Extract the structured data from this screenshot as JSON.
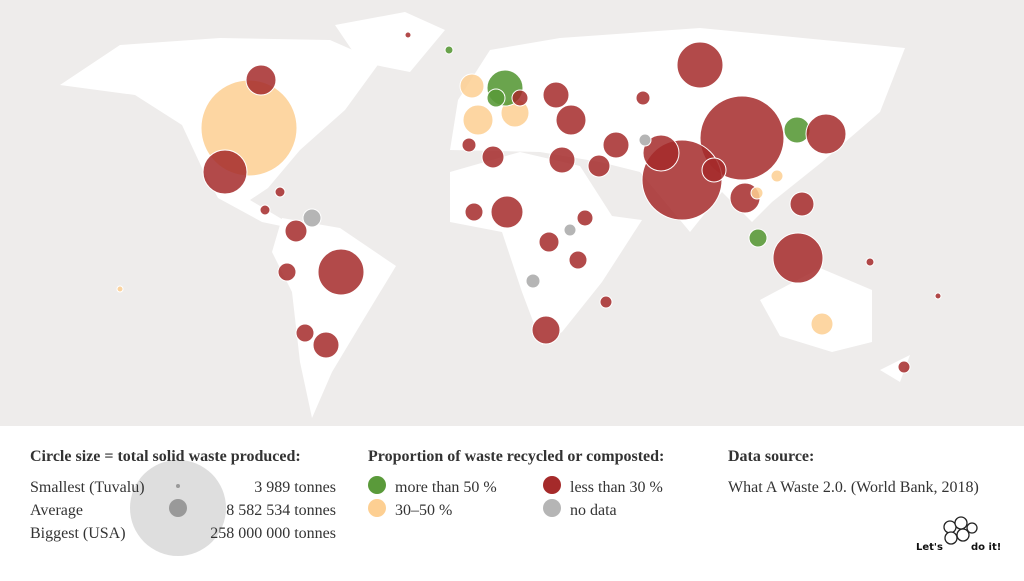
{
  "size_legend": {
    "title": "Circle size = total solid waste produced:",
    "rows": [
      [
        "Smallest (Tuvalu)",
        "3 989 tonnes"
      ],
      [
        "Average",
        "8 582 534 tonnes"
      ],
      [
        "Biggest (USA)",
        "258 000 000 tonnes"
      ]
    ]
  },
  "color_legend": {
    "title": "Proportion of waste recycled or composted:",
    "items": [
      "more than 50 %",
      "less than 30 %",
      "30–50 %",
      "no data"
    ]
  },
  "source": {
    "title": "Data source:",
    "text": "What A Waste 2.0. (World Bank, 2018)"
  },
  "logo": {
    "left": "Let's",
    "right": "do it!"
  }
}
